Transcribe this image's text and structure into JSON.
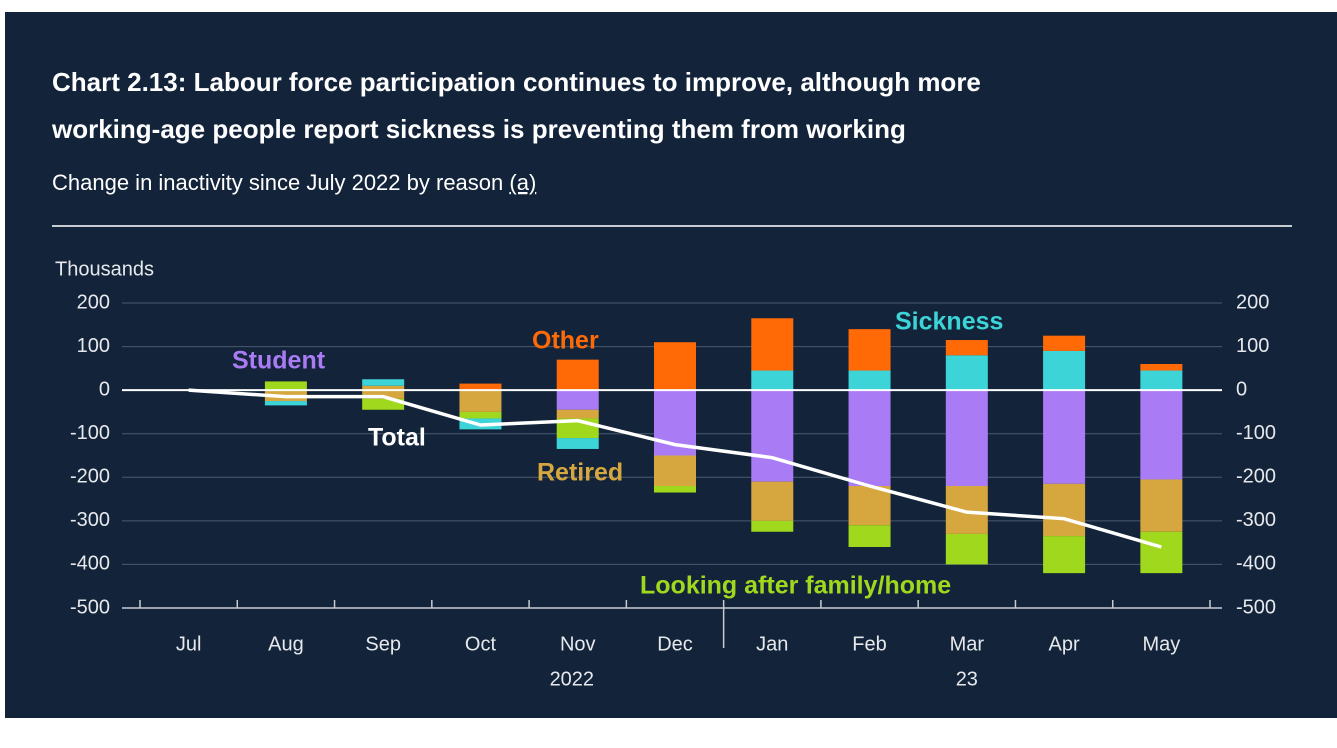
{
  "chart_data": {
    "type": "bar",
    "title_lines": [
      "Chart 2.13: Labour force participation continues to improve, although more",
      "working-age people report sickness is preventing them from working"
    ],
    "subtitle": "Change in inactivity since July 2022 by reason",
    "footnote_link": "(a)",
    "y_label": "Thousands",
    "categories": [
      "Jul",
      "Aug",
      "Sep",
      "Oct",
      "Nov",
      "Dec",
      "Jan",
      "Feb",
      "Mar",
      "Apr",
      "May"
    ],
    "year_labels": [
      "2022",
      "23"
    ],
    "ylim": [
      -500,
      200
    ],
    "yticks": [
      200,
      100,
      0,
      -100,
      -200,
      -300,
      -400,
      -500
    ],
    "stacked": true,
    "series": [
      {
        "name": "Student",
        "color": "#a97cf6",
        "positive": [
          0,
          0,
          0,
          0,
          0,
          0,
          0,
          0,
          0,
          0,
          0
        ],
        "negative": [
          0,
          0,
          0,
          0,
          -45,
          -150,
          -210,
          -220,
          -220,
          -215,
          -205
        ]
      },
      {
        "name": "Retired",
        "color": "#d5a73e",
        "positive": [
          0,
          0,
          10,
          0,
          0,
          0,
          0,
          0,
          0,
          0,
          0
        ],
        "negative": [
          0,
          -25,
          -20,
          -50,
          -20,
          -70,
          -90,
          -90,
          -110,
          -120,
          -120
        ]
      },
      {
        "name": "Looking after family/home",
        "color": "#9fd81c",
        "positive": [
          0,
          20,
          0,
          0,
          0,
          0,
          0,
          0,
          0,
          0,
          0
        ],
        "negative": [
          0,
          0,
          -25,
          -15,
          -45,
          -15,
          -25,
          -50,
          -70,
          -85,
          -95
        ]
      },
      {
        "name": "Sickness",
        "color": "#3dd4d8",
        "positive": [
          0,
          0,
          15,
          0,
          0,
          0,
          45,
          45,
          80,
          90,
          45
        ],
        "negative": [
          0,
          -10,
          0,
          -25,
          -25,
          0,
          0,
          0,
          0,
          0,
          0
        ]
      },
      {
        "name": "Other",
        "color": "#ff6a06",
        "positive": [
          0,
          0,
          0,
          15,
          70,
          110,
          120,
          95,
          35,
          35,
          15
        ],
        "negative": [
          0,
          0,
          0,
          0,
          0,
          0,
          0,
          0,
          0,
          0,
          0
        ]
      }
    ],
    "line": {
      "name": "Total",
      "color": "#ffffff",
      "values": [
        0,
        -15,
        -15,
        -80,
        -70,
        -125,
        -155,
        -220,
        -280,
        -295,
        -360
      ]
    }
  }
}
